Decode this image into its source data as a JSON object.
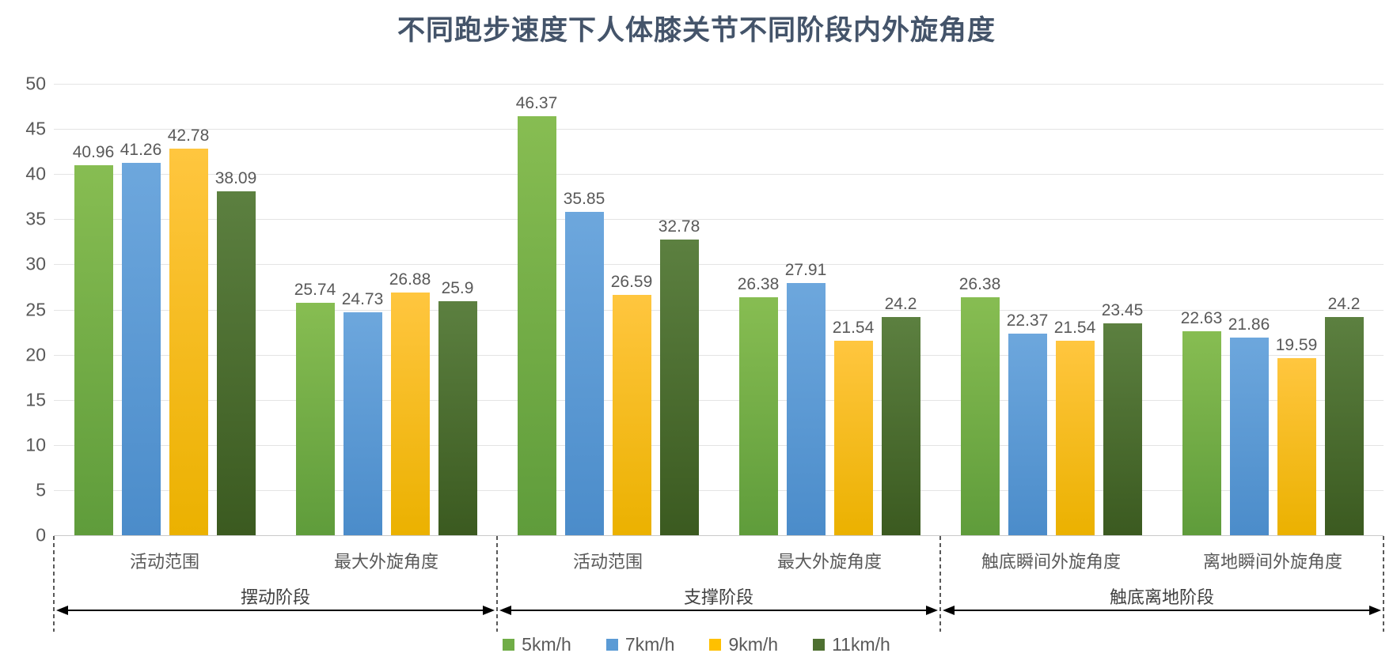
{
  "title": {
    "text": "不同跑步速度下人体膝关节不同阶段内外旋角度",
    "color": "#44546A"
  },
  "colors": {
    "axis_text": "#595959",
    "gridline": "#e4e4e4",
    "annotation": "#000000"
  },
  "chart_data": {
    "type": "bar",
    "title": "不同跑步速度下人体膝关节不同阶段内外旋角度",
    "xlabel": "",
    "ylabel": "",
    "ylim": [
      0,
      50
    ],
    "ytick_step": 5,
    "grid": true,
    "legend_position": "bottom",
    "categories": [
      "活动范围",
      "最大外旋角度",
      "活动范围",
      "最大外旋角度",
      "触底瞬间外旋角度",
      "离地瞬间外旋角度"
    ],
    "phases": [
      {
        "label": "摆动阶段",
        "from_category": 0,
        "to_category": 2
      },
      {
        "label": "支撑阶段",
        "from_category": 2,
        "to_category": 4
      },
      {
        "label": "触底离地阶段",
        "from_category": 4,
        "to_category": 6
      }
    ],
    "series": [
      {
        "name": "5km/h",
        "color": "#70AD47",
        "color_top": "#87BD52",
        "color_bottom": "#5F9C3B",
        "values": [
          40.96,
          25.74,
          46.37,
          26.38,
          26.38,
          22.63
        ]
      },
      {
        "name": "7km/h",
        "color": "#5B9BD5",
        "color_top": "#6DA7DD",
        "color_bottom": "#4B8CCA",
        "values": [
          41.26,
          24.73,
          35.85,
          27.91,
          22.37,
          21.86
        ]
      },
      {
        "name": "9km/h",
        "color": "#FFC000",
        "color_top": "#FFC63F",
        "color_bottom": "#EBB100",
        "values": [
          42.78,
          26.88,
          26.59,
          21.54,
          21.54,
          19.59
        ]
      },
      {
        "name": "11km/h",
        "color": "#4E7031",
        "color_top": "#5C8040",
        "color_bottom": "#3B5A20",
        "values": [
          38.09,
          25.9,
          32.78,
          24.2,
          23.45,
          24.2
        ]
      }
    ]
  }
}
